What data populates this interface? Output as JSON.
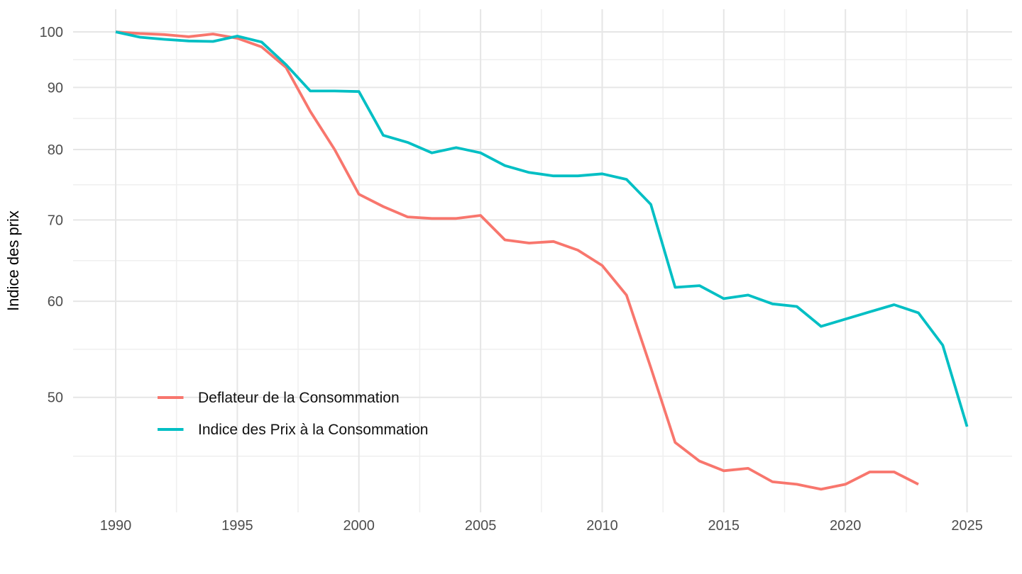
{
  "chart_data": {
    "type": "line",
    "title": "",
    "xlabel": "",
    "ylabel": "Indice des prix",
    "y_scale": "log10",
    "grid": "major+minor",
    "legend_position": "inside-bottom-left",
    "x_ticks": [
      1990,
      1995,
      2000,
      2005,
      2010,
      2015,
      2020,
      2025
    ],
    "y_ticks": [
      50,
      60,
      70,
      80,
      90,
      100
    ],
    "x_range": [
      1988.25,
      2026.85
    ],
    "y_range": [
      40.2,
      104.4
    ],
    "series": [
      {
        "name": "Deflateur de la Consommation",
        "color": "#F8766D",
        "x": [
          1990,
          1991,
          1992,
          1993,
          1994,
          1995,
          1996,
          1997,
          1998,
          1999,
          2000,
          2001,
          2002,
          2003,
          2004,
          2005,
          2006,
          2007,
          2008,
          2009,
          2010,
          2011,
          2012,
          2013,
          2014,
          2015,
          2016,
          2017,
          2018,
          2019,
          2020,
          2021,
          2022,
          2023
        ],
        "values": [
          100,
          99.7,
          99.5,
          99.1,
          99.6,
          98.8,
          97.2,
          93.5,
          86,
          80,
          73.5,
          71.8,
          70.4,
          70.2,
          70.2,
          70.6,
          67.4,
          67,
          67.2,
          66.1,
          64.2,
          60.7,
          52.9,
          45.9,
          44.3,
          43.5,
          43.7,
          42.6,
          42.4,
          42,
          42.4,
          43.4,
          43.4,
          42.4
        ]
      },
      {
        "name": "Indice des Prix à la Consommation",
        "color": "#00BFC4",
        "x": [
          1990,
          1991,
          1992,
          1993,
          1994,
          1995,
          1996,
          1997,
          1998,
          1999,
          2000,
          2001,
          2002,
          2003,
          2004,
          2005,
          2006,
          2007,
          2008,
          2009,
          2010,
          2011,
          2012,
          2013,
          2014,
          2015,
          2016,
          2017,
          2018,
          2019,
          2020,
          2021,
          2022,
          2023,
          2024,
          2025
        ],
        "values": [
          100,
          99,
          98.6,
          98.3,
          98.2,
          99.2,
          98.1,
          94,
          89.4,
          89.4,
          89.3,
          82.2,
          81.1,
          79.5,
          80.3,
          79.5,
          77.6,
          76.6,
          76.1,
          76.1,
          76.4,
          75.6,
          72.1,
          61.6,
          61.8,
          60.3,
          60.7,
          59.7,
          59.4,
          57.2,
          58,
          58.8,
          59.6,
          58.7,
          55.2,
          47.3
        ]
      }
    ],
    "style": {
      "background": "#FFFFFF",
      "major_grid_color": "#E6E6E6",
      "minor_grid_color": "#EFEFEF",
      "tick_label_color": "#4D4D4D",
      "axis_title_color": "#000000",
      "legend_text_color": "#111111",
      "line_width": 3.8
    }
  }
}
